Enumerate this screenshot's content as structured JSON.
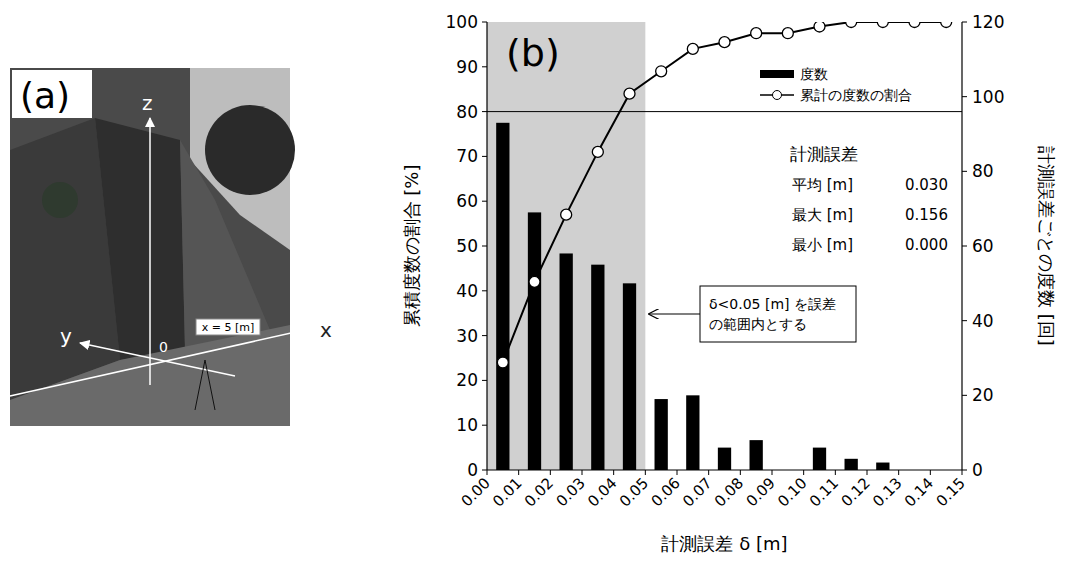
{
  "photo_panel": {
    "letter": "(a)",
    "z_label": "z",
    "y_label": "y",
    "x_label": "x",
    "origin_label": "0",
    "marker_label": "x = 5 [m]"
  },
  "chart_data": {
    "type": "bar",
    "panel_label": "(b)",
    "xlabel": "計測誤差 δ [m]",
    "ylabel": "累積度数の割合 [%]",
    "y2label": "計測誤差ごとの度数 [回]",
    "bins": [
      0,
      0.01,
      0.02,
      0.03,
      0.04,
      0.05,
      0.06,
      0.07,
      0.08,
      0.09,
      0.1,
      0.11,
      0.12,
      0.13,
      0.14,
      0.15
    ],
    "xlim": [
      0,
      0.15
    ],
    "xticks": [
      {
        "value": 0,
        "label": "0.00"
      },
      {
        "value": 0.01,
        "label": "0.01"
      },
      {
        "value": 0.02,
        "label": "0.02"
      },
      {
        "value": 0.03,
        "label": "0.03"
      },
      {
        "value": 0.04,
        "label": "0.04"
      },
      {
        "value": 0.05,
        "label": "0.05"
      },
      {
        "value": 0.06,
        "label": "0.06"
      },
      {
        "value": 0.07,
        "label": "0.07"
      },
      {
        "value": 0.08,
        "label": "0.08"
      },
      {
        "value": 0.09,
        "label": "0.09"
      },
      {
        "value": 0.1,
        "label": "0.10"
      },
      {
        "value": 0.11,
        "label": "0.11"
      },
      {
        "value": 0.12,
        "label": "0.12"
      },
      {
        "value": 0.13,
        "label": "0.13"
      },
      {
        "value": 0.14,
        "label": "0.14"
      },
      {
        "value": 0.15,
        "label": "0.15"
      }
    ],
    "ylim": [
      0,
      100
    ],
    "yticks": [
      0,
      10,
      20,
      30,
      40,
      50,
      60,
      70,
      80,
      90,
      100
    ],
    "y2lim": [
      0,
      120
    ],
    "y2ticks": [
      0,
      20,
      40,
      60,
      80,
      100,
      120
    ],
    "grid": false,
    "legend": "top-right",
    "series": [
      {
        "name": "度数",
        "type": "bar",
        "axis": "y2",
        "color": "#000000",
        "values": [
          93,
          69,
          58,
          55,
          50,
          19,
          20,
          6,
          8,
          0,
          6,
          3,
          2,
          0,
          0
        ]
      },
      {
        "name": "累計の度数の割合",
        "type": "line",
        "color": "#000000",
        "marker": "circle",
        "values": [
          24,
          42,
          57,
          71,
          84,
          89,
          94,
          95.5,
          97.5,
          97.5,
          99,
          100,
          100,
          100,
          100
        ]
      }
    ],
    "shaded_range": [
      0,
      0.05
    ],
    "reference_line": 80,
    "callout": "δ<0.05 [m] を誤差の範囲内とする",
    "stats_box": {
      "title": "計測誤差",
      "rows": [
        {
          "label": "平均 [m]",
          "value": "0.030"
        },
        {
          "label": "最大 [m]",
          "value": "0.156"
        },
        {
          "label": "最小 [m]",
          "value": "0.000"
        }
      ]
    }
  }
}
